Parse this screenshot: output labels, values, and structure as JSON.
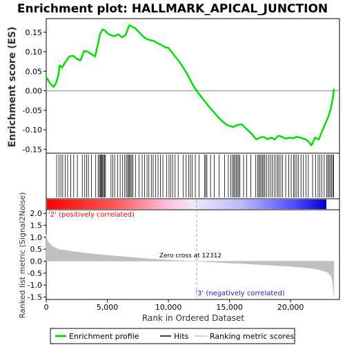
{
  "chart_data": {
    "type": "line",
    "title": "Enrichment plot: HALLMARK_APICAL_JUNCTION",
    "xlabel": "Rank in Ordered Dataset",
    "es_panel": {
      "ylabel": "Enrichment score (ES)",
      "ylim": [
        -0.16,
        0.185
      ],
      "yticks": [
        -0.15,
        -0.1,
        -0.05,
        0.0,
        0.05,
        0.1,
        0.15
      ],
      "ytick_labels": [
        "-0.15",
        "-0.10",
        "-0.05",
        "0.00",
        "0.05",
        "0.10",
        "0.15"
      ],
      "zero_line": true,
      "series": [
        {
          "name": "Enrichment profile",
          "color": "#00e000",
          "x": [
            0,
            300,
            600,
            800,
            1000,
            1100,
            1300,
            1600,
            1900,
            2200,
            2500,
            2800,
            3100,
            3400,
            3700,
            4000,
            4200,
            4400,
            4600,
            4800,
            5000,
            5300,
            5600,
            5900,
            6200,
            6500,
            6800,
            7000,
            7300,
            7600,
            7900,
            8200,
            8500,
            8800,
            9100,
            9400,
            9700,
            10000,
            10500,
            11000,
            11500,
            12000,
            12312,
            12800,
            13300,
            13800,
            14300,
            14800,
            15300,
            15600,
            16000,
            16400,
            16800,
            17200,
            17500,
            17800,
            18100,
            18400,
            18700,
            19000,
            19300,
            19600,
            19900,
            20200,
            20500,
            20800,
            21100,
            21400,
            21700,
            22000,
            22300,
            22600,
            22900,
            23100,
            23300,
            23450,
            23550
          ],
          "y": [
            0.035,
            0.02,
            0.01,
            0.02,
            0.04,
            0.065,
            0.06,
            0.075,
            0.088,
            0.09,
            0.082,
            0.078,
            0.102,
            0.1,
            0.094,
            0.088,
            0.115,
            0.145,
            0.157,
            0.155,
            0.148,
            0.142,
            0.14,
            0.145,
            0.137,
            0.143,
            0.168,
            0.165,
            0.16,
            0.15,
            0.14,
            0.133,
            0.13,
            0.128,
            0.122,
            0.118,
            0.112,
            0.11,
            0.09,
            0.07,
            0.045,
            0.015,
            0.0,
            -0.02,
            -0.04,
            -0.058,
            -0.075,
            -0.088,
            -0.093,
            -0.088,
            -0.086,
            -0.098,
            -0.11,
            -0.125,
            -0.12,
            -0.118,
            -0.124,
            -0.12,
            -0.125,
            -0.115,
            -0.118,
            -0.123,
            -0.12,
            -0.122,
            -0.118,
            -0.12,
            -0.123,
            -0.128,
            -0.14,
            -0.12,
            -0.125,
            -0.102,
            -0.08,
            -0.065,
            -0.045,
            -0.02,
            0.005
          ]
        }
      ]
    },
    "hits": {
      "name": "Hits",
      "color": "#000000",
      "positions": [
        850,
        1050,
        1200,
        1350,
        1550,
        1750,
        2000,
        2250,
        2550,
        2950,
        3150,
        3300,
        3450,
        3700,
        4050,
        4250,
        4350,
        4420,
        4500,
        4560,
        4620,
        4700,
        4780,
        4850,
        5300,
        5450,
        5600,
        5850,
        6050,
        6250,
        6420,
        6550,
        6650,
        6750,
        6820,
        6900,
        7000,
        7100,
        7300,
        7600,
        7850,
        8050,
        8250,
        8400,
        8600,
        8750,
        8950,
        9150,
        9350,
        9550,
        9850,
        10050,
        10200,
        10350,
        10550,
        10800,
        11200,
        11450,
        11650,
        11800,
        11950,
        12200,
        12500,
        12950,
        13050,
        13150,
        13450,
        13750,
        14150,
        14600,
        14900,
        15100,
        15250,
        15350,
        15450,
        15550,
        15650,
        15750,
        15850,
        16150,
        16400,
        16750,
        17150,
        17300,
        17400,
        17500,
        17600,
        17700,
        17800,
        17900,
        18050,
        18200,
        18350,
        18500,
        18650,
        18800,
        18950,
        19050,
        19200,
        19350,
        19600,
        19850,
        20050,
        20250,
        20350,
        20500,
        20650,
        20850,
        21050,
        21250,
        21450,
        21800,
        22050,
        22250,
        22400,
        22550,
        22750,
        22950,
        23050,
        23150,
        23250,
        23350,
        23450,
        23520
      ]
    },
    "ranking_panel": {
      "ylabel": "Ranked list metric (Signal2Noise)",
      "ylim": [
        -1.6,
        2.15
      ],
      "yticks": [
        -1.5,
        -1.0,
        -0.5,
        0.0,
        0.5,
        1.0,
        1.5,
        2.0
      ],
      "ytick_labels": [
        "-1.5",
        "-1.0",
        "-0.5",
        "0.0",
        "0.5",
        "1.0",
        "1.5",
        "2.0"
      ],
      "series": [
        {
          "name": "Ranking metric scores",
          "color": "#c0c0c0",
          "x": [
            0,
            50,
            200,
            500,
            1000,
            2000,
            3000,
            4000,
            5000,
            6000,
            7000,
            8000,
            9000,
            10000,
            11000,
            12312,
            13000,
            14000,
            15000,
            16000,
            17000,
            18000,
            19000,
            20000,
            21000,
            22000,
            22500,
            23000,
            23300,
            23450,
            23550
          ],
          "y": [
            1.12,
            0.95,
            0.78,
            0.62,
            0.5,
            0.42,
            0.35,
            0.3,
            0.25,
            0.2,
            0.16,
            0.12,
            0.08,
            0.05,
            0.02,
            0.0,
            -0.02,
            -0.05,
            -0.08,
            -0.1,
            -0.13,
            -0.16,
            -0.19,
            -0.22,
            -0.26,
            -0.32,
            -0.38,
            -0.46,
            -0.6,
            -0.9,
            -1.48
          ]
        }
      ],
      "zero_cross_label": "Zero cross at 12312",
      "zero_cross": 12312,
      "positive_label": "'2' (positively correlated)",
      "negative_label": "'3' (negatively correlated)",
      "positive_color": "#ff0000",
      "negative_color": "#0000ff"
    },
    "xlim": [
      0,
      24000
    ],
    "xticks": [
      0,
      5000,
      10000,
      15000,
      20000
    ],
    "xtick_labels": [
      "0",
      "5,000",
      "10,000",
      "15,000",
      "20,000"
    ],
    "legend": {
      "position": "bottom",
      "entries": [
        "Enrichment profile",
        "Hits",
        "Ranking metric scores"
      ]
    }
  }
}
